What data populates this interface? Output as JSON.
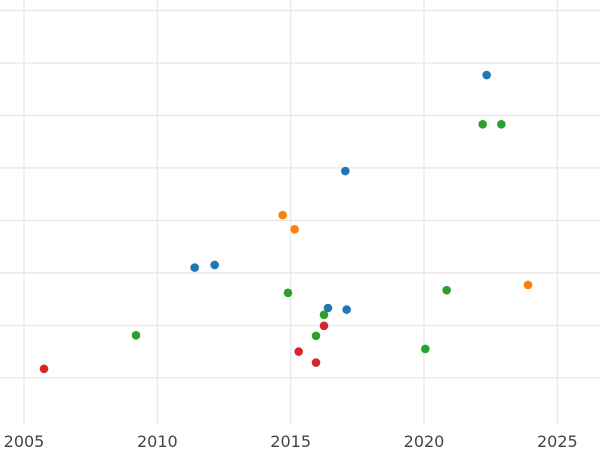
{
  "chart_data": {
    "type": "scatter",
    "title": "",
    "xlabel": "",
    "ylabel": "",
    "grid": true,
    "xlim": [
      2004.1,
      2026.6
    ],
    "ylim": [
      -0.4,
      7.7
    ],
    "x_ticks": [
      2005,
      2010,
      2015,
      2020,
      2025
    ],
    "x_tick_labels": [
      "2005",
      "2010",
      "2015",
      "2020",
      "2025"
    ],
    "y_gridlines": [
      0.5,
      1.5,
      2.5,
      3.5,
      4.5,
      5.5,
      6.5,
      7.5
    ],
    "series": [
      {
        "color": "#1f77b4",
        "points": [
          {
            "x": 2022.35,
            "y": 6.27
          },
          {
            "x": 2017.05,
            "y": 4.44
          },
          {
            "x": 2011.4,
            "y": 2.6
          },
          {
            "x": 2012.15,
            "y": 2.65
          },
          {
            "x": 2016.4,
            "y": 1.83
          },
          {
            "x": 2017.1,
            "y": 1.8
          }
        ]
      },
      {
        "color": "#2ca02c",
        "points": [
          {
            "x": 2022.2,
            "y": 5.33
          },
          {
            "x": 2022.9,
            "y": 5.33
          },
          {
            "x": 2014.9,
            "y": 2.12
          },
          {
            "x": 2020.85,
            "y": 2.17
          },
          {
            "x": 2016.25,
            "y": 1.7
          },
          {
            "x": 2015.95,
            "y": 1.3
          },
          {
            "x": 2009.2,
            "y": 1.31
          },
          {
            "x": 2020.05,
            "y": 1.05
          }
        ]
      },
      {
        "color": "#ff7f0e",
        "points": [
          {
            "x": 2014.7,
            "y": 3.6
          },
          {
            "x": 2015.15,
            "y": 3.33
          },
          {
            "x": 2023.9,
            "y": 2.27
          }
        ]
      },
      {
        "color": "#d62728",
        "points": [
          {
            "x": 2016.25,
            "y": 1.49
          },
          {
            "x": 2015.3,
            "y": 1.0
          },
          {
            "x": 2015.95,
            "y": 0.79
          },
          {
            "x": 2005.75,
            "y": 0.67
          }
        ]
      }
    ]
  }
}
